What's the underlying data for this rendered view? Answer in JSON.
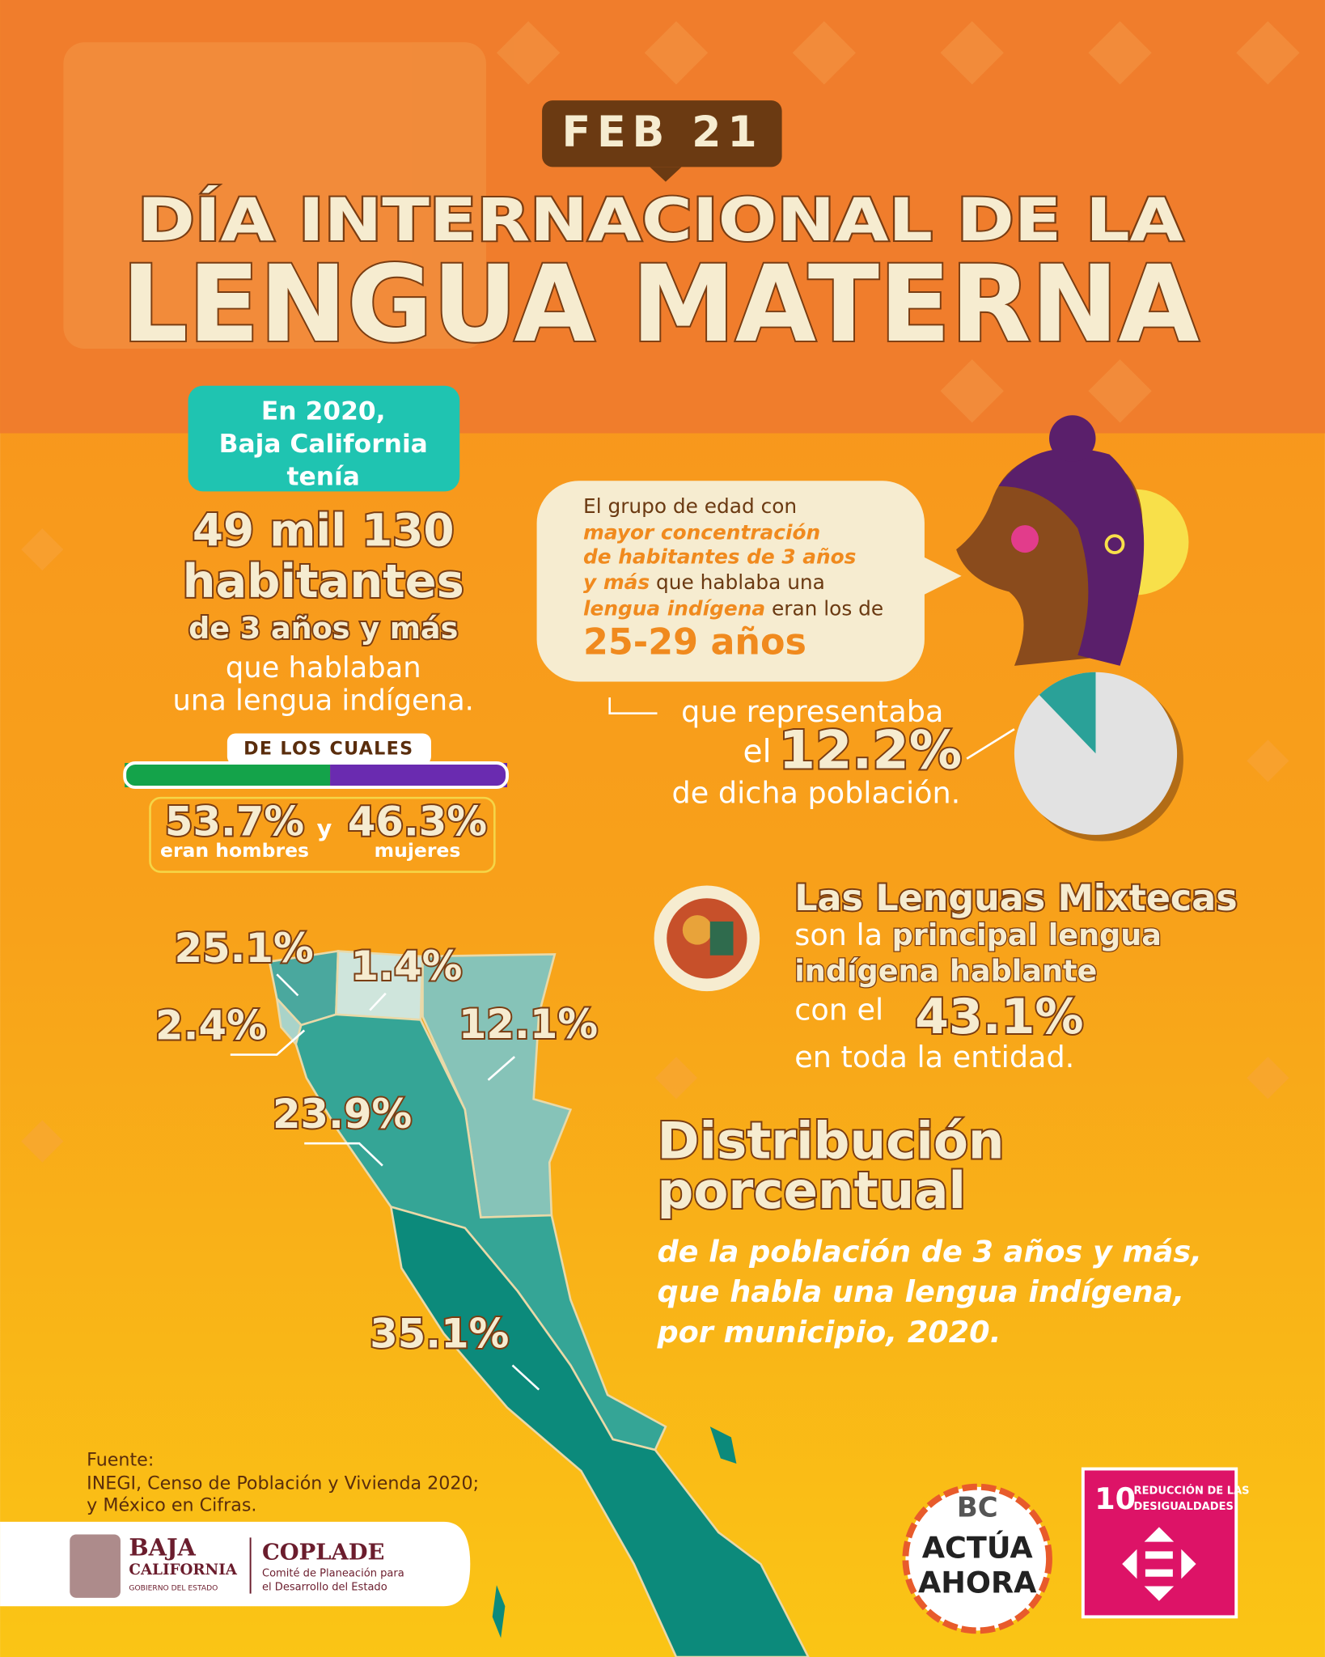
{
  "header": {
    "date": "FEB 21",
    "title_top": "DÍA INTERNACIONAL DE LA",
    "title_main": "LENGUA MATERNA"
  },
  "population": {
    "intro": [
      "En 2020,",
      "Baja California",
      "tenía"
    ],
    "count": "49 mil 130",
    "unit": "habitantes",
    "age": "de 3 años y más",
    "description": [
      "que hablaban",
      "una lengua indígena."
    ]
  },
  "gender": {
    "heading": "DE LOS CUALES",
    "connector": "y",
    "groups": [
      {
        "value": 53.7,
        "label": "53.7%",
        "caption": "eran hombres",
        "color": "#14a34a"
      },
      {
        "value": 46.3,
        "label": "46.3%",
        "caption": "mujeres",
        "color": "#6a2bb0"
      }
    ]
  },
  "age_group": {
    "lines": [
      [
        {
          "text": "El grupo de edad con"
        }
      ],
      [
        {
          "text": "mayor concentración",
          "em": true
        }
      ],
      [
        {
          "text": "de habitantes de 3 años",
          "em": true
        }
      ],
      [
        {
          "text": "y más",
          "em": true
        },
        {
          "text": " que hablaba una"
        }
      ],
      [
        {
          "text": "lengua indígena",
          "em": true
        },
        {
          "text": " eran los de"
        }
      ]
    ],
    "range": "25-29 años",
    "share": {
      "before": "que representaba",
      "prefix": "el",
      "value": 12.2,
      "label": "12.2%",
      "after": "de dicha población.",
      "color": "#2aa198",
      "rest_color": "#e2e2e2"
    }
  },
  "language": {
    "name": "Las Lenguas Mixtecas",
    "lines": [
      [
        {
          "text": "son la "
        },
        {
          "text": "principal lengua",
          "em": true
        }
      ],
      [
        {
          "text": "indígena hablante",
          "em": true
        }
      ]
    ],
    "prefix": "con el",
    "value": 43.1,
    "label": "43.1%",
    "suffix": "en toda la entidad."
  },
  "distribution": {
    "title": [
      "Distribución",
      "porcentual"
    ],
    "subtitle": [
      "de la población de 3 años y más,",
      "que habla una lengua indígena,",
      "por municipio, 2020."
    ],
    "municipalities": [
      {
        "value": 25.1,
        "label": "25.1%",
        "color": "#4aa89e"
      },
      {
        "value": 1.4,
        "label": "1.4%",
        "color": "#cfe5dc"
      },
      {
        "value": 2.4,
        "label": "2.4%",
        "color": "#a9d3c9"
      },
      {
        "value": 12.1,
        "label": "12.1%",
        "color": "#86c3b8"
      },
      {
        "value": 23.9,
        "label": "23.9%",
        "color": "#35a596"
      },
      {
        "value": 35.1,
        "label": "35.1%",
        "color": "#0c8a7b"
      }
    ]
  },
  "source": {
    "heading": "Fuente:",
    "lines": [
      "INEGI, Censo de Población y Vivienda 2020;",
      "y México en Cifras."
    ]
  },
  "footer": {
    "state": [
      "BAJA",
      "CALIFORNIA",
      "GOBIERNO DEL ESTADO"
    ],
    "agency": "COPLADE",
    "agency_lines": [
      "Comité de Planeación para",
      "el Desarrollo del Estado"
    ],
    "campaign": [
      "BC",
      "ACTÚA",
      "AHORA"
    ],
    "sdg_number": "10",
    "sdg_lines": [
      "REDUCCIÓN DE LAS",
      "DESIGUALDADES"
    ]
  }
}
